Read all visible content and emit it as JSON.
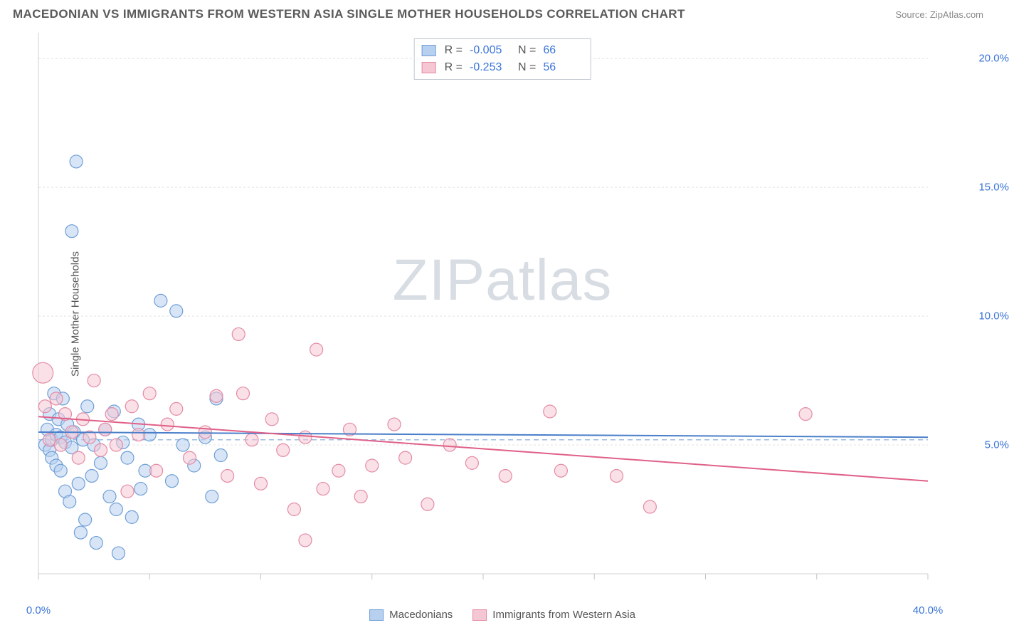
{
  "title": "MACEDONIAN VS IMMIGRANTS FROM WESTERN ASIA SINGLE MOTHER HOUSEHOLDS CORRELATION CHART",
  "source": "Source: ZipAtlas.com",
  "watermark_zip": "ZIP",
  "watermark_atlas": "atlas",
  "chart": {
    "type": "scatter",
    "y_axis_label": "Single Mother Households",
    "background_color": "#ffffff",
    "grid_color": "#e2e2e2",
    "grid_dash": "3,3",
    "axis_line_color": "#d0d0d0",
    "tick_color": "#c4c4c4",
    "axis_label_color": "#3a74d8",
    "text_color": "#555555",
    "xlim": [
      0,
      40
    ],
    "ylim": [
      0,
      21
    ],
    "x_ticks": [
      0,
      5,
      10,
      15,
      20,
      25,
      30,
      35,
      40
    ],
    "x_tick_labels": {
      "0": "0.0%",
      "40": "40.0%"
    },
    "y_ticks": [
      5,
      10,
      15,
      20
    ],
    "y_tick_labels": {
      "5": "5.0%",
      "10": "10.0%",
      "15": "15.0%",
      "20": "20.0%"
    },
    "reference_line": {
      "y": 5.2,
      "color": "#7ea7d8",
      "dash": "7,5",
      "width": 1.2
    },
    "marker_base_radius": 9,
    "marker_stroke_width": 1.2,
    "series": [
      {
        "name": "Macedonians",
        "color_fill": "#b8d0f0",
        "color_stroke": "#6f9fd6",
        "fill_opacity": 0.55,
        "R": "-0.005",
        "N": "66",
        "trend": {
          "x1": 0,
          "y1": 5.5,
          "x2": 40,
          "y2": 5.3,
          "color": "#4a7fc9",
          "width": 2
        },
        "points": [
          [
            0.3,
            5.0
          ],
          [
            0.4,
            5.6
          ],
          [
            0.5,
            4.8
          ],
          [
            0.5,
            6.2
          ],
          [
            0.6,
            5.2
          ],
          [
            0.6,
            4.5
          ],
          [
            0.7,
            7.0
          ],
          [
            0.8,
            5.4
          ],
          [
            0.8,
            4.2
          ],
          [
            0.9,
            6.0
          ],
          [
            1.0,
            5.3
          ],
          [
            1.0,
            4.0
          ],
          [
            1.1,
            6.8
          ],
          [
            1.2,
            5.1
          ],
          [
            1.2,
            3.2
          ],
          [
            1.3,
            5.8
          ],
          [
            1.4,
            2.8
          ],
          [
            1.5,
            4.9
          ],
          [
            1.5,
            13.3
          ],
          [
            1.6,
            5.5
          ],
          [
            1.7,
            16.0
          ],
          [
            1.8,
            3.5
          ],
          [
            1.9,
            1.6
          ],
          [
            2.0,
            5.2
          ],
          [
            2.1,
            2.1
          ],
          [
            2.2,
            6.5
          ],
          [
            2.4,
            3.8
          ],
          [
            2.5,
            5.0
          ],
          [
            2.6,
            1.2
          ],
          [
            2.8,
            4.3
          ],
          [
            3.0,
            5.6
          ],
          [
            3.2,
            3.0
          ],
          [
            3.4,
            6.3
          ],
          [
            3.5,
            2.5
          ],
          [
            3.6,
            0.8
          ],
          [
            3.8,
            5.1
          ],
          [
            4.0,
            4.5
          ],
          [
            4.2,
            2.2
          ],
          [
            4.5,
            5.8
          ],
          [
            4.6,
            3.3
          ],
          [
            4.8,
            4.0
          ],
          [
            5.0,
            5.4
          ],
          [
            5.5,
            10.6
          ],
          [
            6.0,
            3.6
          ],
          [
            6.2,
            10.2
          ],
          [
            6.5,
            5.0
          ],
          [
            7.0,
            4.2
          ],
          [
            7.5,
            5.3
          ],
          [
            7.8,
            3.0
          ],
          [
            8.0,
            6.8
          ],
          [
            8.2,
            4.6
          ]
        ]
      },
      {
        "name": "Immigrants from Western Asia",
        "color_fill": "#f5c7d4",
        "color_stroke": "#e48ba5",
        "fill_opacity": 0.55,
        "R": "-0.253",
        "N": "56",
        "trend": {
          "x1": 0,
          "y1": 6.1,
          "x2": 40,
          "y2": 3.6,
          "color": "#e06088",
          "width": 2
        },
        "points": [
          [
            0.2,
            7.8,
            1.6
          ],
          [
            0.3,
            6.5
          ],
          [
            0.5,
            5.2
          ],
          [
            0.8,
            6.8
          ],
          [
            1.0,
            5.0
          ],
          [
            1.2,
            6.2
          ],
          [
            1.5,
            5.5
          ],
          [
            1.8,
            4.5
          ],
          [
            2.0,
            6.0
          ],
          [
            2.3,
            5.3
          ],
          [
            2.5,
            7.5
          ],
          [
            2.8,
            4.8
          ],
          [
            3.0,
            5.6
          ],
          [
            3.3,
            6.2
          ],
          [
            3.5,
            5.0
          ],
          [
            4.0,
            3.2
          ],
          [
            4.2,
            6.5
          ],
          [
            4.5,
            5.4
          ],
          [
            5.0,
            7.0
          ],
          [
            5.3,
            4.0
          ],
          [
            5.8,
            5.8
          ],
          [
            6.2,
            6.4
          ],
          [
            6.8,
            4.5
          ],
          [
            7.5,
            5.5
          ],
          [
            8.0,
            6.9
          ],
          [
            8.5,
            3.8
          ],
          [
            9.0,
            9.3
          ],
          [
            9.2,
            7.0
          ],
          [
            9.6,
            5.2
          ],
          [
            10.0,
            3.5
          ],
          [
            10.5,
            6.0
          ],
          [
            11.0,
            4.8
          ],
          [
            11.5,
            2.5
          ],
          [
            12.0,
            5.3
          ],
          [
            12.0,
            1.3
          ],
          [
            12.5,
            8.7
          ],
          [
            12.8,
            3.3
          ],
          [
            13.5,
            4.0
          ],
          [
            14.0,
            5.6
          ],
          [
            14.5,
            3.0
          ],
          [
            15.0,
            4.2
          ],
          [
            16.0,
            5.8
          ],
          [
            16.5,
            4.5
          ],
          [
            17.5,
            2.7
          ],
          [
            18.5,
            5.0
          ],
          [
            19.5,
            4.3
          ],
          [
            21.0,
            3.8
          ],
          [
            23.0,
            6.3
          ],
          [
            23.5,
            4.0
          ],
          [
            26.0,
            3.8
          ],
          [
            27.5,
            2.6
          ],
          [
            34.5,
            6.2
          ]
        ]
      }
    ]
  },
  "legend_bottom": [
    {
      "label": "Macedonians",
      "fill": "#b8d0f0",
      "stroke": "#6f9fd6"
    },
    {
      "label": "Immigrants from Western Asia",
      "fill": "#f5c7d4",
      "stroke": "#e48ba5"
    }
  ]
}
